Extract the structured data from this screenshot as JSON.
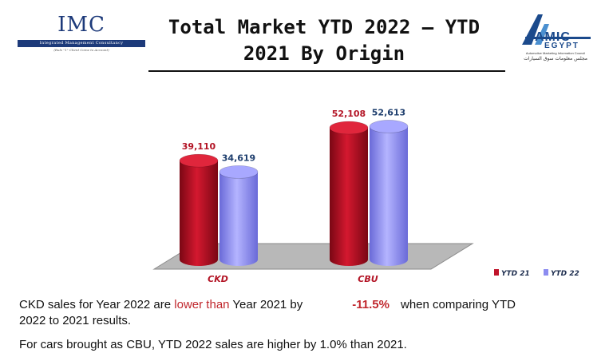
{
  "header": {
    "title_line1": "Total Market YTD 2022 – YTD",
    "title_line2": "2021 By Origin",
    "imc_logo": {
      "name": "IMC",
      "bar_text": "Integrated Management Consultancy",
      "tagline": "(Rule \"1\" Client Come to Account)"
    },
    "amic_logo": {
      "letters": "AMIC",
      "country": "EGYPT",
      "subtitle": "Automotive Marketing Information Council",
      "arabic": "مجلس معلومات سوق السيارات"
    }
  },
  "chart_data": {
    "type": "bar",
    "style": "3d-cylinder",
    "categories": [
      "CKD",
      "CBU"
    ],
    "series": [
      {
        "name": "YTD 21",
        "color": "#c0142a",
        "values": [
          39110,
          52108
        ],
        "labels": [
          "39,110",
          "52,108"
        ]
      },
      {
        "name": "YTD 22",
        "color": "#8c8cf0",
        "values": [
          34619,
          52613
        ],
        "labels": [
          "34,619",
          "52,613"
        ]
      }
    ],
    "ylim": [
      0,
      60000
    ],
    "legend_position": "bottom-right",
    "grid": false
  },
  "paragraph": {
    "p1_a": "CKD sales for Year 2022 are ",
    "p1_lower": "lower than",
    "p1_b": " Year 2021 by",
    "p1_pct": "-11.5%",
    "p1_c": "when comparing YTD",
    "p1_d": "2022 to 2021 results.",
    "p2_visible": "For cars brought as CBU, YTD 2022 sales are higher by 1.0% than 2021."
  }
}
